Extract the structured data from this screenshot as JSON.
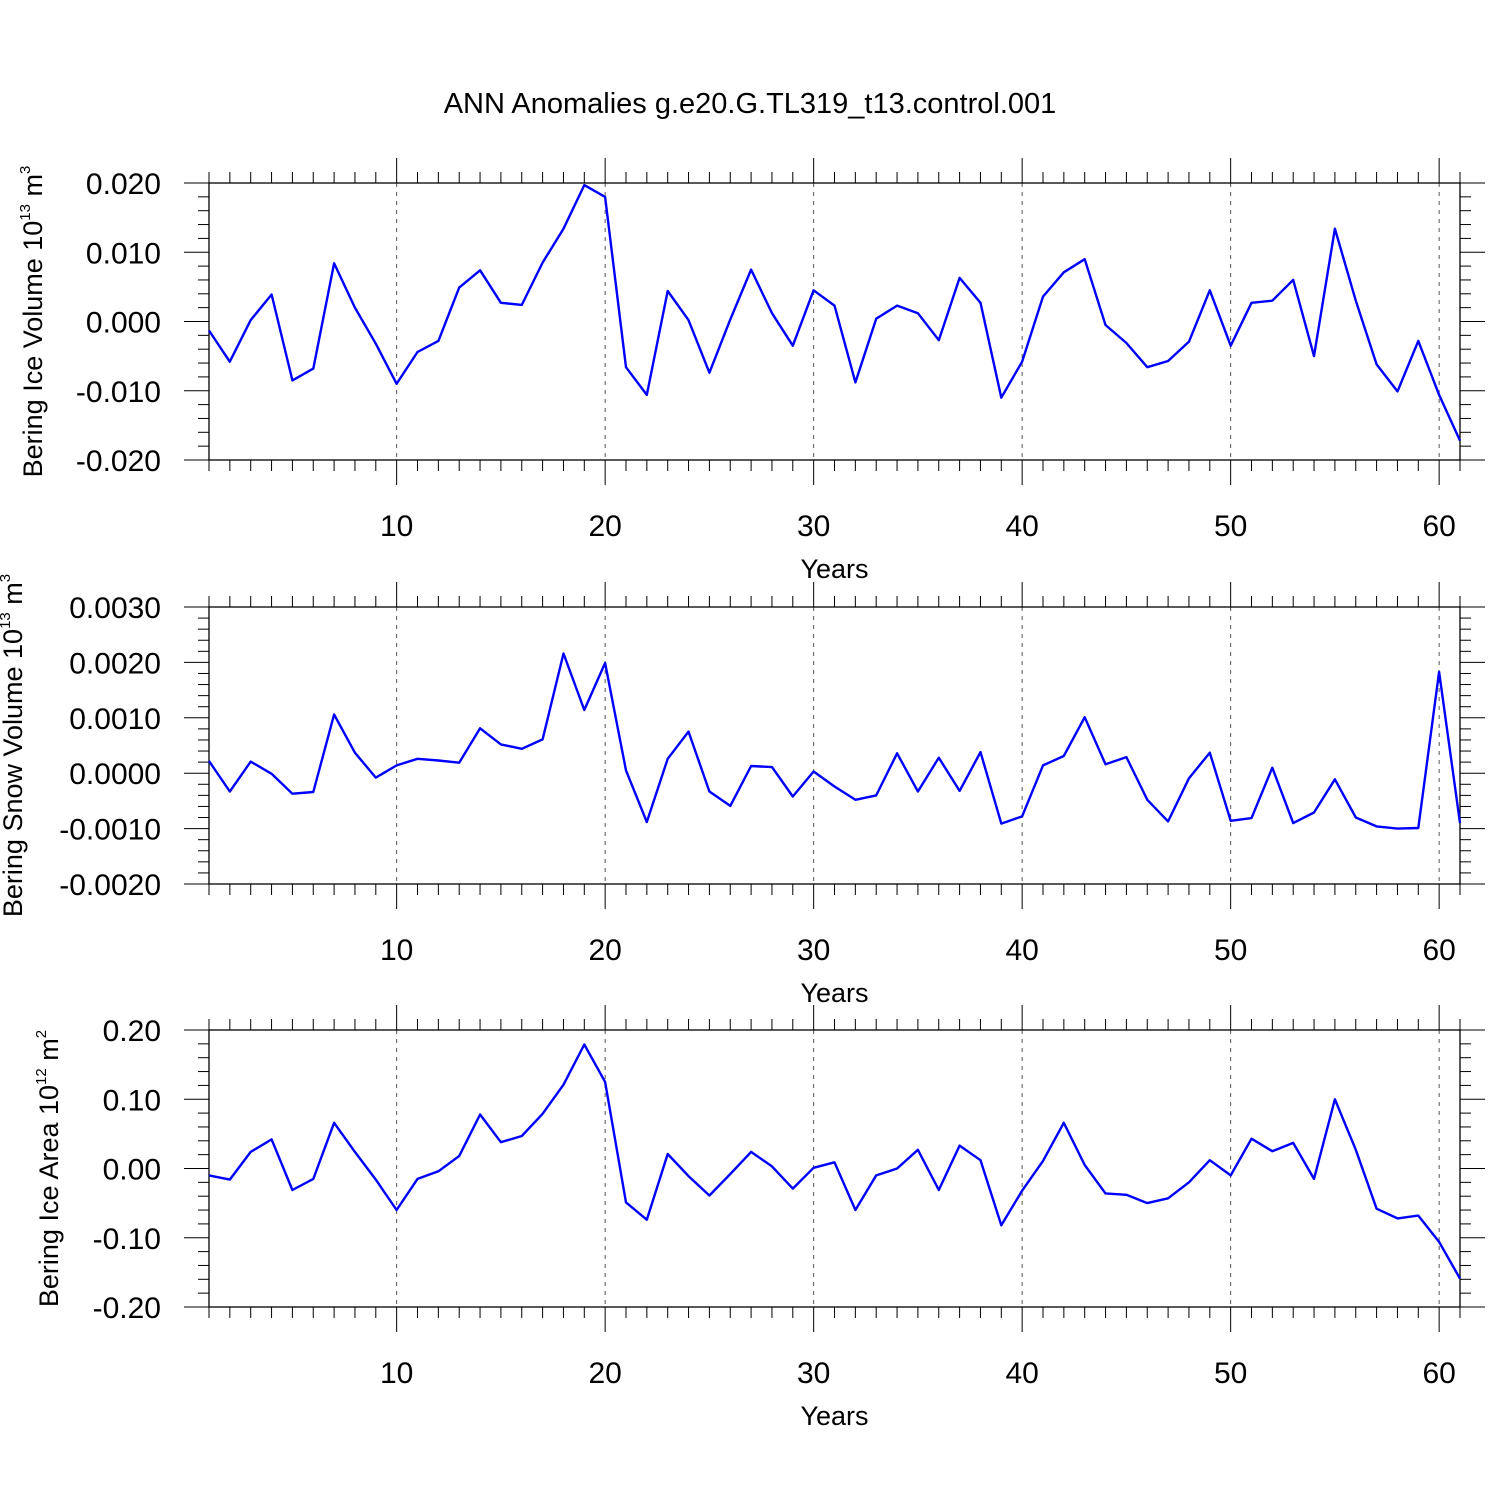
{
  "title": "ANN Anomalies g.e20.G.TL319_t13.control.001",
  "chart_data": [
    {
      "type": "line",
      "ylabel": "Bering Ice Volume",
      "yunit_base": "10",
      "yunit_exp": "13",
      "yunit_tail": " m",
      "yunit_tail_exp": "3",
      "xlabel": "Years",
      "xlim": [
        1,
        61
      ],
      "ylim": [
        -0.02,
        0.02
      ],
      "yticks": [
        -0.02,
        -0.01,
        0.0,
        0.01,
        0.02
      ],
      "ytick_labels": [
        "-0.020",
        "-0.010",
        "0.000",
        "0.010",
        "0.020"
      ],
      "xticks": [
        10,
        20,
        30,
        40,
        50,
        60
      ],
      "xtick_labels": [
        "10",
        "20",
        "30",
        "40",
        "50",
        "60"
      ],
      "grid_x": "dashed",
      "color": "#0000ff",
      "x_start": 1,
      "values": [
        -0.0013,
        -0.0058,
        0.0002,
        0.0039,
        -0.0085,
        -0.0068,
        0.0084,
        0.002,
        -0.0032,
        -0.009,
        -0.0044,
        -0.0028,
        0.0049,
        0.0074,
        0.0027,
        0.0024,
        0.0085,
        0.0134,
        0.0197,
        0.018,
        -0.0066,
        -0.0106,
        0.0044,
        0.0002,
        -0.0074,
        0.0003,
        0.0075,
        0.0012,
        -0.0035,
        0.0045,
        0.0023,
        -0.0088,
        0.0004,
        0.0023,
        0.0012,
        -0.0027,
        0.0063,
        0.0027,
        -0.011,
        -0.0058,
        0.0036,
        0.0071,
        0.009,
        -0.0005,
        -0.0031,
        -0.0066,
        -0.0057,
        -0.0029,
        0.0045,
        -0.0035,
        0.0027,
        0.003,
        0.006,
        -0.005,
        0.0134,
        0.003,
        -0.0062,
        -0.0101,
        -0.0028,
        -0.0106,
        -0.0172
      ]
    },
    {
      "type": "line",
      "ylabel": "Bering Snow Volume",
      "yunit_base": "10",
      "yunit_exp": "13",
      "yunit_tail": " m",
      "yunit_tail_exp": "3",
      "xlabel": "Years",
      "xlim": [
        1,
        61
      ],
      "ylim": [
        -0.002,
        0.003
      ],
      "yticks": [
        -0.002,
        -0.001,
        0.0,
        0.001,
        0.002,
        0.003
      ],
      "ytick_labels": [
        "-0.0020",
        "-0.0010",
        "0.0000",
        "0.0010",
        "0.0020",
        "0.0030"
      ],
      "xticks": [
        10,
        20,
        30,
        40,
        50,
        60
      ],
      "xtick_labels": [
        "10",
        "20",
        "30",
        "40",
        "50",
        "60"
      ],
      "grid_x": "dashed",
      "color": "#0000ff",
      "x_start": 1,
      "values": [
        0.00022,
        -0.00033,
        0.00021,
        -1e-05,
        -0.00037,
        -0.00034,
        0.00106,
        0.00037,
        -8e-05,
        0.00014,
        0.00026,
        0.00023,
        0.00019,
        0.00081,
        0.00052,
        0.00044,
        0.00061,
        0.00216,
        0.00114,
        0.00199,
        5e-05,
        -0.00088,
        0.00026,
        0.00075,
        -0.00033,
        -0.00059,
        0.00013,
        0.00011,
        -0.00042,
        3e-05,
        -0.00024,
        -0.00048,
        -0.0004,
        0.00036,
        -0.00033,
        0.00028,
        -0.00032,
        0.00038,
        -0.00091,
        -0.00078,
        0.00014,
        0.00031,
        0.00101,
        0.00016,
        0.00029,
        -0.00048,
        -0.00087,
        -9e-05,
        0.00037,
        -0.00086,
        -0.00081,
        0.0001,
        -0.0009,
        -0.00071,
        -0.00011,
        -0.0008,
        -0.00096,
        -0.001,
        -0.00099,
        0.00183,
        -0.0009
      ]
    },
    {
      "type": "line",
      "ylabel": "Bering Ice Area",
      "yunit_base": "10",
      "yunit_exp": "12",
      "yunit_tail": " m",
      "yunit_tail_exp": "2",
      "xlabel": "Years",
      "xlim": [
        1,
        61
      ],
      "ylim": [
        -0.2,
        0.2
      ],
      "yticks": [
        -0.2,
        -0.1,
        0.0,
        0.1,
        0.2
      ],
      "ytick_labels": [
        "-0.20",
        "-0.10",
        "0.00",
        "0.10",
        "0.20"
      ],
      "xticks": [
        10,
        20,
        30,
        40,
        50,
        60
      ],
      "xtick_labels": [
        "10",
        "20",
        "30",
        "40",
        "50",
        "60"
      ],
      "grid_x": "dashed",
      "color": "#0000ff",
      "x_start": 1,
      "values": [
        -0.01,
        -0.016,
        0.024,
        0.042,
        -0.031,
        -0.015,
        0.066,
        0.024,
        -0.016,
        -0.06,
        -0.015,
        -0.004,
        0.018,
        0.078,
        0.038,
        0.047,
        0.079,
        0.121,
        0.179,
        0.125,
        -0.049,
        -0.074,
        0.021,
        -0.011,
        -0.039,
        -0.008,
        0.024,
        0.003,
        -0.029,
        0.001,
        0.009,
        -0.06,
        -0.01,
        0.0,
        0.027,
        -0.031,
        0.033,
        0.012,
        -0.082,
        -0.032,
        0.011,
        0.066,
        0.005,
        -0.036,
        -0.038,
        -0.05,
        -0.043,
        -0.02,
        0.012,
        -0.01,
        0.043,
        0.025,
        0.037,
        -0.015,
        0.1,
        0.027,
        -0.058,
        -0.072,
        -0.068,
        -0.106,
        -0.159
      ]
    }
  ]
}
